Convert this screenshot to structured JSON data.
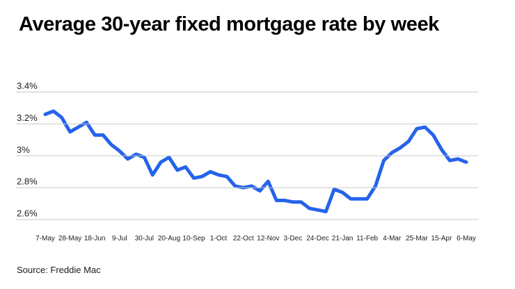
{
  "title": "Average 30-year fixed mortgage rate by week",
  "source": "Source: Freddie Mac",
  "colors": {
    "line": "#2563eb",
    "grid": "#c7c7c7",
    "tick_text": "#202020",
    "title_text": "#000000"
  },
  "chart_data": {
    "type": "line",
    "title": "Average 30-year fixed mortgage rate by week",
    "source": "Source: Freddie Mac",
    "grid": "horizontal",
    "legend": "none",
    "ylim": [
      2.55,
      3.45
    ],
    "y_ticks": [
      {
        "label": "3.4%",
        "value": 3.4
      },
      {
        "label": "3.2%",
        "value": 3.2
      },
      {
        "label": "3%",
        "value": 3.0
      },
      {
        "label": "2.8%",
        "value": 2.8
      },
      {
        "label": "2.6%",
        "value": 2.6
      }
    ],
    "x_ticks": [
      {
        "index": 0,
        "label": "7-May"
      },
      {
        "index": 3,
        "label": "28-May"
      },
      {
        "index": 6,
        "label": "18-Jun"
      },
      {
        "index": 9,
        "label": "9-Jul"
      },
      {
        "index": 12,
        "label": "30-Jul"
      },
      {
        "index": 15,
        "label": "20-Aug"
      },
      {
        "index": 18,
        "label": "10-Sep"
      },
      {
        "index": 21,
        "label": "1-Oct"
      },
      {
        "index": 24,
        "label": "22-Oct"
      },
      {
        "index": 27,
        "label": "12-Nov"
      },
      {
        "index": 30,
        "label": "3-Dec"
      },
      {
        "index": 33,
        "label": "24-Dec"
      },
      {
        "index": 36,
        "label": "21-Jan"
      },
      {
        "index": 39,
        "label": "11-Feb"
      },
      {
        "index": 42,
        "label": "4-Mar"
      },
      {
        "index": 45,
        "label": "25-Mar"
      },
      {
        "index": 48,
        "label": "15-Apr"
      },
      {
        "index": 51,
        "label": "6-May"
      }
    ],
    "series": [
      {
        "name": "Average 30-year fixed mortgage rate",
        "color": "#2563eb",
        "values": [
          3.26,
          3.28,
          3.24,
          3.15,
          3.18,
          3.21,
          3.13,
          3.13,
          3.07,
          3.03,
          2.98,
          3.01,
          2.99,
          2.88,
          2.96,
          2.99,
          2.91,
          2.93,
          2.86,
          2.87,
          2.9,
          2.88,
          2.87,
          2.81,
          2.8,
          2.81,
          2.78,
          2.84,
          2.72,
          2.72,
          2.71,
          2.71,
          2.67,
          2.66,
          2.65,
          2.79,
          2.77,
          2.73,
          2.73,
          2.73,
          2.81,
          2.97,
          3.02,
          3.05,
          3.09,
          3.17,
          3.18,
          3.13,
          3.04,
          2.97,
          2.98,
          2.96
        ]
      }
    ]
  }
}
